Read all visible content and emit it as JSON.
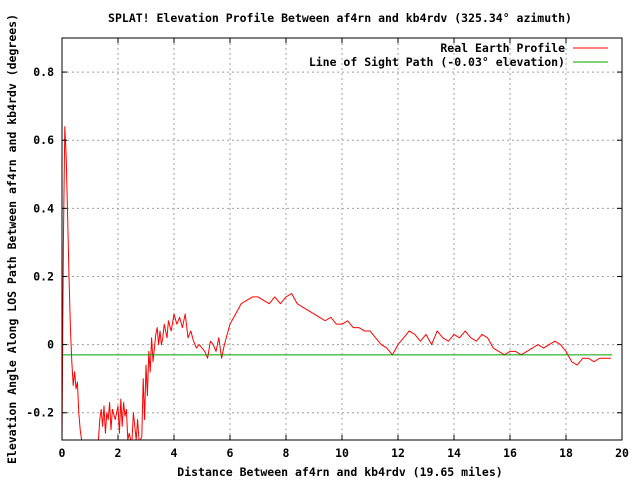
{
  "chart_data": {
    "type": "line",
    "title": "SPLAT! Elevation Profile Between af4rn and kb4rdv (325.34° azimuth)",
    "xlabel": "Distance Between af4rn and kb4rdv (19.65 miles)",
    "ylabel": "Elevation Angle Along LOS Path Between af4rn and kb4rdv (degrees)",
    "xlim": [
      0,
      20
    ],
    "ylim": [
      -0.28,
      0.9
    ],
    "x_ticks": [
      "0",
      "2",
      "4",
      "6",
      "8",
      "10",
      "12",
      "14",
      "16",
      "18",
      "20"
    ],
    "y_ticks": [
      "-0.2",
      "0",
      "0.2",
      "0.4",
      "0.6",
      "0.8"
    ],
    "x_tick_values": [
      0,
      2,
      4,
      6,
      8,
      10,
      12,
      14,
      16,
      18,
      20
    ],
    "y_tick_values": [
      -0.2,
      0,
      0.2,
      0.4,
      0.6,
      0.8
    ],
    "grid": true,
    "legend_position": "top-right",
    "series": [
      {
        "name": "Real Earth Profile",
        "color": "#ff0000",
        "x": [
          0.0,
          0.05,
          0.1,
          0.15,
          0.2,
          0.25,
          0.3,
          0.35,
          0.4,
          0.45,
          0.5,
          0.55,
          0.6,
          0.65,
          0.7,
          0.75,
          0.8,
          0.9,
          1.0,
          1.2,
          1.3,
          1.35,
          1.4,
          1.45,
          1.5,
          1.55,
          1.6,
          1.65,
          1.7,
          1.75,
          1.8,
          1.9,
          2.0,
          2.05,
          2.1,
          2.15,
          2.2,
          2.25,
          2.3,
          2.35,
          2.4,
          2.45,
          2.5,
          2.55,
          2.6,
          2.65,
          2.7,
          2.75,
          2.8,
          2.85,
          2.9,
          2.95,
          3.0,
          3.05,
          3.1,
          3.15,
          3.2,
          3.25,
          3.3,
          3.35,
          3.4,
          3.45,
          3.5,
          3.55,
          3.6,
          3.65,
          3.7,
          3.75,
          3.8,
          3.9,
          4.0,
          4.1,
          4.2,
          4.3,
          4.4,
          4.5,
          4.6,
          4.7,
          4.8,
          4.9,
          5.0,
          5.1,
          5.2,
          5.3,
          5.4,
          5.5,
          5.6,
          5.7,
          5.8,
          5.9,
          6.0,
          6.2,
          6.4,
          6.6,
          6.8,
          7.0,
          7.2,
          7.4,
          7.6,
          7.8,
          8.0,
          8.2,
          8.4,
          8.6,
          8.8,
          9.0,
          9.2,
          9.4,
          9.6,
          9.8,
          10.0,
          10.2,
          10.4,
          10.6,
          10.8,
          11.0,
          11.2,
          11.4,
          11.6,
          11.8,
          12.0,
          12.2,
          12.4,
          12.6,
          12.8,
          13.0,
          13.2,
          13.4,
          13.6,
          13.8,
          14.0,
          14.2,
          14.4,
          14.6,
          14.8,
          15.0,
          15.2,
          15.4,
          15.6,
          15.8,
          16.0,
          16.2,
          16.4,
          16.6,
          16.8,
          17.0,
          17.2,
          17.4,
          17.6,
          17.8,
          18.0,
          18.2,
          18.4,
          18.6,
          18.8,
          19.0,
          19.2,
          19.4,
          19.6
        ],
        "y": [
          -0.28,
          0.3,
          0.64,
          0.55,
          0.38,
          0.2,
          0.05,
          -0.05,
          -0.12,
          -0.08,
          -0.13,
          -0.11,
          -0.2,
          -0.25,
          -0.28,
          -0.28,
          -0.28,
          -0.28,
          -0.28,
          -0.28,
          -0.28,
          -0.22,
          -0.19,
          -0.24,
          -0.18,
          -0.26,
          -0.2,
          -0.22,
          -0.17,
          -0.25,
          -0.19,
          -0.22,
          -0.18,
          -0.26,
          -0.16,
          -0.24,
          -0.17,
          -0.21,
          -0.19,
          -0.28,
          -0.26,
          -0.28,
          -0.28,
          -0.2,
          -0.24,
          -0.28,
          -0.22,
          -0.28,
          -0.28,
          -0.27,
          -0.1,
          -0.22,
          -0.06,
          -0.15,
          -0.02,
          -0.08,
          0.02,
          -0.05,
          -0.01,
          0.03,
          0.05,
          0.0,
          0.04,
          0.0,
          0.02,
          0.06,
          0.04,
          0.02,
          0.07,
          0.04,
          0.09,
          0.06,
          0.08,
          0.05,
          0.09,
          0.02,
          0.04,
          0.01,
          -0.01,
          0.0,
          -0.01,
          -0.02,
          -0.04,
          0.01,
          0.0,
          -0.02,
          0.02,
          -0.04,
          0.0,
          0.03,
          0.06,
          0.09,
          0.12,
          0.13,
          0.14,
          0.14,
          0.13,
          0.12,
          0.14,
          0.12,
          0.14,
          0.15,
          0.12,
          0.11,
          0.1,
          0.09,
          0.08,
          0.07,
          0.08,
          0.06,
          0.06,
          0.07,
          0.05,
          0.05,
          0.04,
          0.04,
          0.02,
          0.0,
          -0.01,
          -0.03,
          0.0,
          0.02,
          0.04,
          0.03,
          0.01,
          0.03,
          0.0,
          0.04,
          0.02,
          0.01,
          0.03,
          0.02,
          0.04,
          0.02,
          0.01,
          0.03,
          0.02,
          -0.01,
          -0.02,
          -0.03,
          -0.02,
          -0.02,
          -0.03,
          -0.02,
          -0.01,
          0.0,
          -0.01,
          0.0,
          0.01,
          0.0,
          -0.02,
          -0.05,
          -0.06,
          -0.04,
          -0.04,
          -0.05,
          -0.04,
          -0.04,
          -0.04
        ]
      },
      {
        "name": "Line of Sight Path (-0.03° elevation)",
        "color": "#00a000",
        "x": [
          0,
          19.65
        ],
        "y": [
          -0.03,
          -0.03
        ]
      }
    ]
  }
}
